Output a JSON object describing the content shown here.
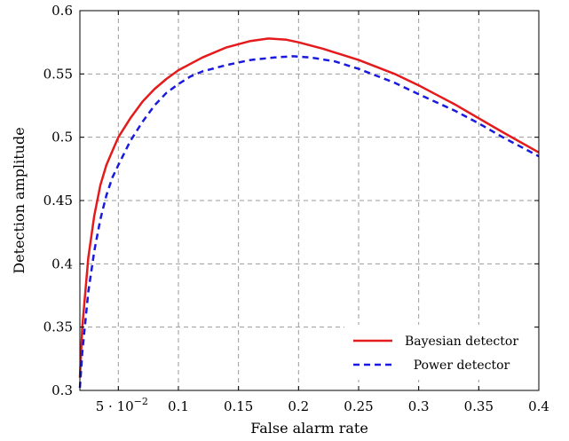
{
  "chart_data": {
    "type": "line",
    "title": "",
    "xlabel": "False alarm rate",
    "ylabel": "Detection amplitude",
    "xlim": [
      0.018,
      0.4
    ],
    "ylim": [
      0.3,
      0.6
    ],
    "grid": true,
    "legend_position": "bottom-right",
    "x_ticks": [
      {
        "value": 0.05,
        "label": "5 · 10"
      },
      {
        "value": 0.1,
        "label": "0.1"
      },
      {
        "value": 0.15,
        "label": "0.15"
      },
      {
        "value": 0.2,
        "label": "0.2"
      },
      {
        "value": 0.25,
        "label": "0.25"
      },
      {
        "value": 0.3,
        "label": "0.3"
      },
      {
        "value": 0.35,
        "label": "0.35"
      },
      {
        "value": 0.4,
        "label": "0.4"
      }
    ],
    "x_tick_exponent": "−2",
    "y_ticks": [
      {
        "value": 0.3,
        "label": "0.3"
      },
      {
        "value": 0.35,
        "label": "0.35"
      },
      {
        "value": 0.4,
        "label": "0.4"
      },
      {
        "value": 0.45,
        "label": "0.45"
      },
      {
        "value": 0.5,
        "label": "0.5"
      },
      {
        "value": 0.55,
        "label": "0.55"
      },
      {
        "value": 0.6,
        "label": "0.6"
      }
    ],
    "series": [
      {
        "name": "Bayesian detector",
        "color": "#e41a1c",
        "dash": "solid",
        "x": [
          0.018,
          0.02,
          0.025,
          0.03,
          0.035,
          0.04,
          0.045,
          0.05,
          0.06,
          0.07,
          0.08,
          0.09,
          0.1,
          0.12,
          0.14,
          0.16,
          0.175,
          0.19,
          0.2,
          0.22,
          0.25,
          0.28,
          0.3,
          0.33,
          0.35,
          0.37,
          0.4
        ],
        "y": [
          0.31,
          0.35,
          0.405,
          0.438,
          0.462,
          0.478,
          0.489,
          0.5,
          0.515,
          0.528,
          0.538,
          0.546,
          0.553,
          0.563,
          0.571,
          0.576,
          0.578,
          0.577,
          0.575,
          0.57,
          0.561,
          0.55,
          0.541,
          0.526,
          0.515,
          0.504,
          0.488
        ]
      },
      {
        "name": "Power detector",
        "color": "#1a1adf",
        "dash": "dashed",
        "x": [
          0.018,
          0.02,
          0.025,
          0.03,
          0.035,
          0.04,
          0.045,
          0.05,
          0.06,
          0.07,
          0.08,
          0.09,
          0.1,
          0.11,
          0.12,
          0.14,
          0.16,
          0.18,
          0.195,
          0.21,
          0.23,
          0.25,
          0.28,
          0.3,
          0.33,
          0.35,
          0.37,
          0.4
        ],
        "y": [
          0.302,
          0.33,
          0.378,
          0.41,
          0.435,
          0.454,
          0.468,
          0.478,
          0.497,
          0.512,
          0.525,
          0.535,
          0.542,
          0.548,
          0.552,
          0.557,
          0.561,
          0.563,
          0.564,
          0.563,
          0.56,
          0.554,
          0.543,
          0.534,
          0.521,
          0.511,
          0.5,
          0.485
        ]
      }
    ]
  }
}
